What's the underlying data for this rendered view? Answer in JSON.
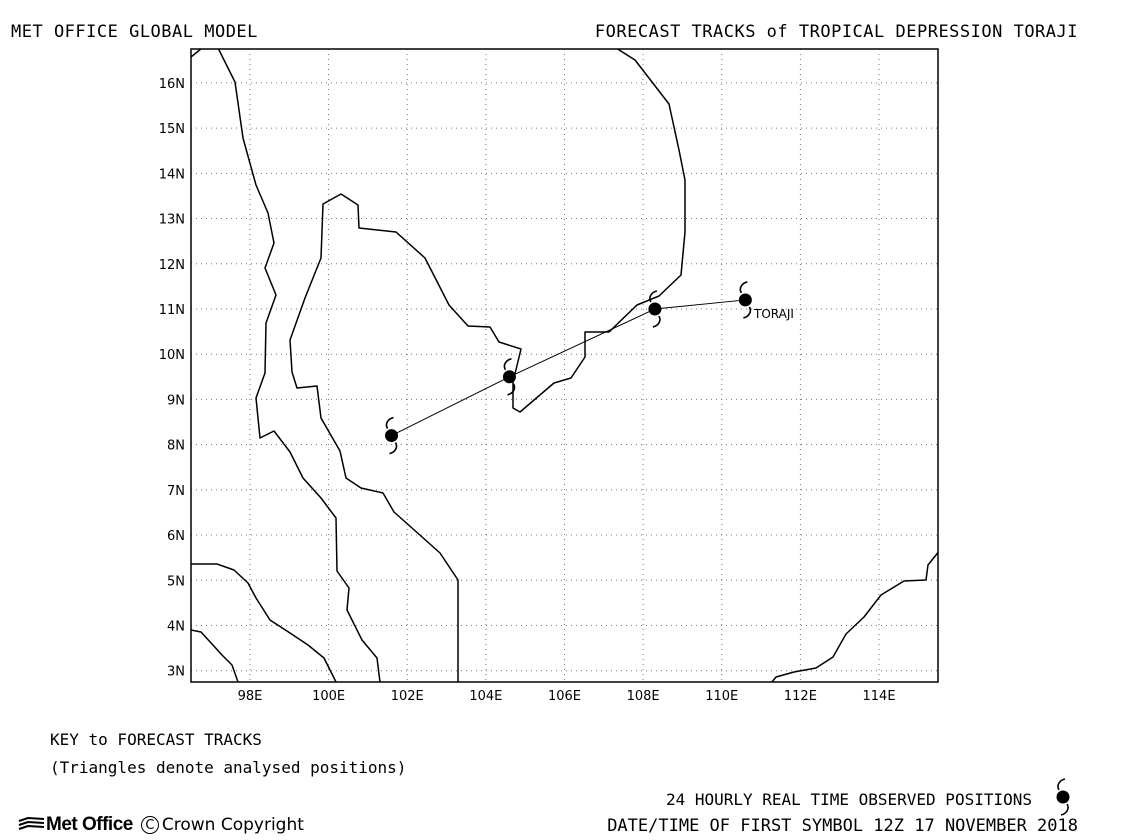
{
  "header": {
    "left": "MET OFFICE GLOBAL MODEL",
    "right": "FORECAST TRACKS of TROPICAL DEPRESSION TORAJI"
  },
  "map": {
    "lon_range": [
      96.5,
      115.5
    ],
    "lat_range": [
      2.75,
      16.75
    ],
    "lon_ticks": [
      98,
      100,
      102,
      104,
      106,
      108,
      110,
      112,
      114
    ],
    "lon_tick_labels": [
      "98E",
      "100E",
      "102E",
      "104E",
      "106E",
      "108E",
      "110E",
      "112E",
      "114E"
    ],
    "lat_ticks": [
      3,
      4,
      5,
      6,
      7,
      8,
      9,
      10,
      11,
      12,
      13,
      14,
      15,
      16
    ],
    "lat_tick_labels": [
      "3N",
      "4N",
      "5N",
      "6N",
      "7N",
      "8N",
      "9N",
      "10N",
      "11N",
      "12N",
      "13N",
      "14N",
      "15N",
      "16N"
    ],
    "grid": "dotted",
    "line_color": "#000000",
    "storm_label": "TORAJI",
    "track": [
      {
        "lon": 110.6,
        "lat": 11.2
      },
      {
        "lon": 108.3,
        "lat": 11.0
      },
      {
        "lon": 104.6,
        "lat": 9.5
      },
      {
        "lon": 101.6,
        "lat": 8.2
      }
    ]
  },
  "key": {
    "title": "KEY to FORECAST TRACKS",
    "note": "(Triangles denote analysed positions)",
    "observed": "24 HOURLY REAL TIME OBSERVED POSITIONS",
    "datetime": "DATE/TIME OF FIRST SYMBOL 12Z 17 NOVEMBER 2018"
  },
  "footer": {
    "logo_text": "Met Office",
    "copyright_symbol": "C",
    "copyright_text": "Crown Copyright"
  }
}
